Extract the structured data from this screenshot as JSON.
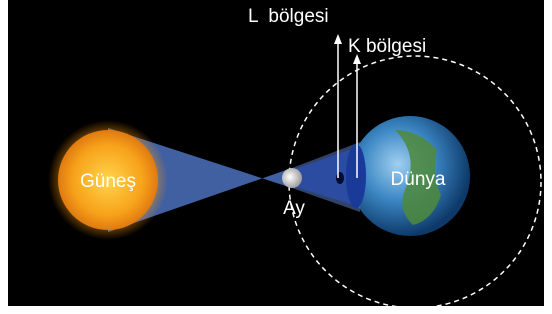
{
  "labels": {
    "l_region": "L  bölgesi",
    "k_region": "K bölgesi",
    "sun": "Güneş",
    "moon": "Ay",
    "earth": "Dünya"
  }
}
